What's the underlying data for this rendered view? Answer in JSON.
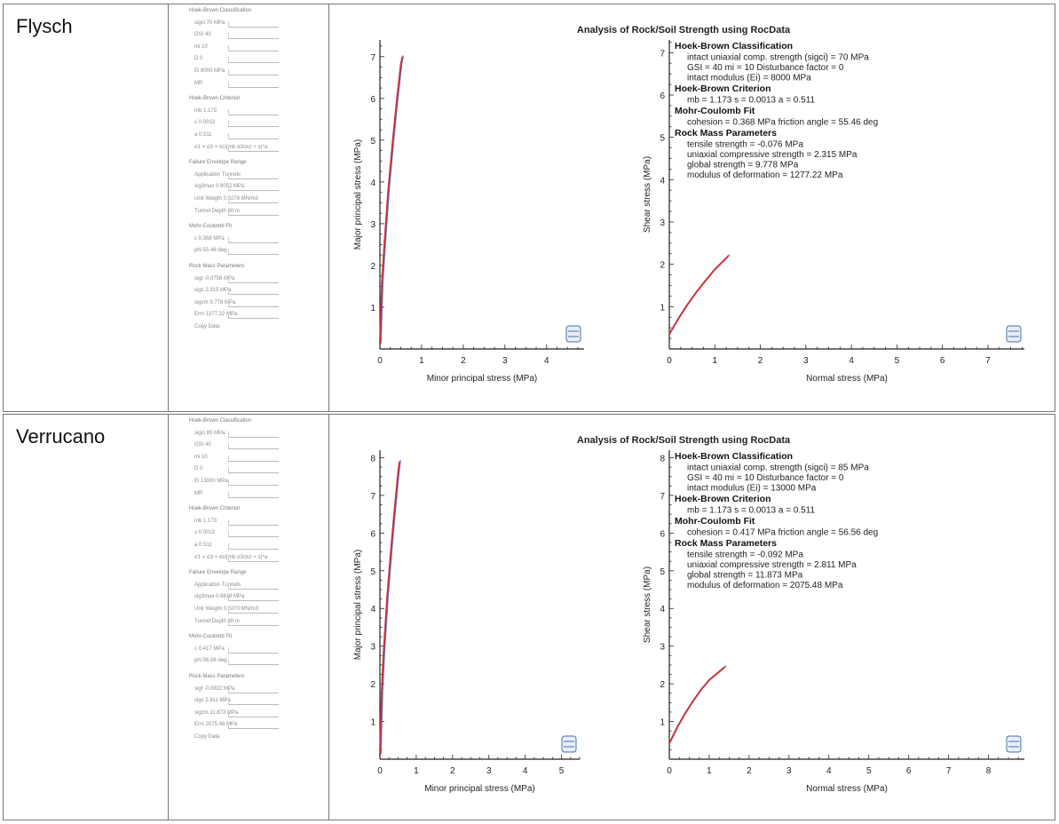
{
  "rows": [
    {
      "name": "Flysch",
      "panel_lines": [
        {
          "t": "Hoek-Brown Classification",
          "sec": true
        },
        {
          "t": "sigci  70   MPa"
        },
        {
          "t": "GSI  40"
        },
        {
          "t": "mi  10"
        },
        {
          "t": "D  0"
        },
        {
          "t": "Ei  8000   MPa"
        },
        {
          "t": "MR  "
        },
        {
          "t": "Hoek-Brown Criterion",
          "sec": true
        },
        {
          "t": "mb  1.173"
        },
        {
          "t": "s  0.0013"
        },
        {
          "t": "a  0.511"
        },
        {
          "t": "σ1 = σ3 + σci(mb σ3/σci + s)^a"
        },
        {
          "t": "Failure Envelope Range",
          "sec": true
        },
        {
          "t": "Application  Tunnels"
        },
        {
          "t": "sig3max  0.8052   MPa"
        },
        {
          "t": "Unit Weight  0.0278  MN/m3"
        },
        {
          "t": "Tunnel Depth  30   m"
        },
        {
          "t": "Mohr-Coulomb Fit",
          "sec": true
        },
        {
          "t": "c  0.368   MPa"
        },
        {
          "t": "phi  55.46   deg"
        },
        {
          "t": "Rock Mass Parameters",
          "sec": true
        },
        {
          "t": "sigt  -0.0758   MPa"
        },
        {
          "t": "sigc  2.315   MPa"
        },
        {
          "t": "sigcm  9.778   MPa"
        },
        {
          "t": "Erm  1277.22   MPa"
        },
        {
          "t": "Copy Data"
        }
      ],
      "title": "Analysis of Rock/Soil Strength using RocData",
      "principal": {
        "xlabel": "Minor principal stress (MPa)",
        "ylabel": "Major principal stress (MPa)",
        "xticks": [
          "0",
          "1",
          "2",
          "3",
          "4"
        ],
        "yticks": [
          "1",
          "2",
          "3",
          "4",
          "5",
          "6",
          "7"
        ],
        "xlim": [
          0,
          4.9
        ],
        "ylim": [
          0,
          7.4
        ],
        "curve_x": [
          0,
          0.05,
          0.1,
          0.2,
          0.3,
          0.4,
          0.5,
          0.54
        ],
        "curve_y": [
          0.1,
          1.6,
          2.4,
          3.8,
          4.9,
          5.9,
          6.8,
          7.0
        ]
      },
      "shear": {
        "xlabel": "Normal stress (MPa)",
        "ylabel": "Shear stress (MPa)",
        "xticks": [
          "0",
          "1",
          "2",
          "3",
          "4",
          "5",
          "6",
          "7"
        ],
        "yticks": [
          "1",
          "2",
          "3",
          "4",
          "5",
          "6",
          "7"
        ],
        "xlim": [
          0,
          7.8
        ],
        "ylim": [
          0,
          7.3
        ],
        "curve_x": [
          0,
          0.2,
          0.4,
          0.6,
          0.8,
          1.0,
          1.3
        ],
        "curve_y": [
          0.35,
          0.72,
          1.05,
          1.35,
          1.62,
          1.88,
          2.2
        ]
      },
      "summary": [
        {
          "h": "Hoek-Brown Classification",
          "lines": [
            "intact uniaxial comp. strength (sigci) = 70 MPa",
            "GSI = 40    mi = 10    Disturbance factor = 0",
            "intact modulus (Ei) = 8000 MPa"
          ]
        },
        {
          "h": "Hoek-Brown Criterion",
          "lines": [
            "mb = 1.173    s = 0.0013    a = 0.511"
          ]
        },
        {
          "h": "Mohr-Coulomb Fit",
          "lines": [
            "cohesion = 0.368 MPa    friction angle = 55.46 deg"
          ]
        },
        {
          "h": "Rock Mass Parameters",
          "lines": [
            "tensile strength = -0.076 MPa",
            "uniaxial compressive strength = 2.315 MPa",
            "global strength = 9.778 MPa",
            "modulus of deformation = 1277.22 MPa"
          ]
        }
      ]
    },
    {
      "name": "Verrucano",
      "panel_lines": [
        {
          "t": "Hoek-Brown Classification",
          "sec": true
        },
        {
          "t": "sigci  85   MPa"
        },
        {
          "t": "GSI  40"
        },
        {
          "t": "mi  10"
        },
        {
          "t": "D  0"
        },
        {
          "t": "Ei  13000   MPa"
        },
        {
          "t": "MR  "
        },
        {
          "t": "Hoek-Brown Criterion",
          "sec": true
        },
        {
          "t": "mb  1.173"
        },
        {
          "t": "s  0.0013"
        },
        {
          "t": "a  0.511"
        },
        {
          "t": "σ1 = σ3 + σci(mb σ3/σci + s)^a"
        },
        {
          "t": "Failure Envelope Range",
          "sec": true
        },
        {
          "t": "Application  Tunnels"
        },
        {
          "t": "sig3max  0.8818   MPa"
        },
        {
          "t": "Unit Weight  0.0270  MN/m3"
        },
        {
          "t": "Tunnel Depth  30   m"
        },
        {
          "t": "Mohr-Coulomb Fit",
          "sec": true
        },
        {
          "t": "c  0.417   MPa"
        },
        {
          "t": "phi  56.56   deg"
        },
        {
          "t": "Rock Mass Parameters",
          "sec": true
        },
        {
          "t": "sigt  -0.0922   MPa"
        },
        {
          "t": "sigc  2.811   MPa"
        },
        {
          "t": "sigcm  11.873   MPa"
        },
        {
          "t": "Erm  2075.48   MPa"
        },
        {
          "t": "Copy Data"
        }
      ],
      "title": "Analysis of Rock/Soil Strength using RocData",
      "principal": {
        "xlabel": "Minor principal stress (MPa)",
        "ylabel": "Major principal stress (MPa)",
        "xticks": [
          "0",
          "1",
          "2",
          "3",
          "4",
          "5"
        ],
        "yticks": [
          "1",
          "2",
          "3",
          "4",
          "5",
          "6",
          "7",
          "8"
        ],
        "xlim": [
          0,
          5.5
        ],
        "ylim": [
          0,
          8.2
        ],
        "curve_x": [
          0,
          0.05,
          0.1,
          0.2,
          0.3,
          0.4,
          0.5,
          0.54
        ],
        "curve_y": [
          0.1,
          1.8,
          2.8,
          4.3,
          5.5,
          6.6,
          7.6,
          7.9
        ]
      },
      "shear": {
        "xlabel": "Normal stress (MPa)",
        "ylabel": "Shear stress (MPa)",
        "xticks": [
          "0",
          "1",
          "2",
          "3",
          "4",
          "5",
          "6",
          "7",
          "8"
        ],
        "yticks": [
          "1",
          "2",
          "3",
          "4",
          "5",
          "6",
          "7",
          "8"
        ],
        "xlim": [
          0,
          8.9
        ],
        "ylim": [
          0,
          8.2
        ],
        "curve_x": [
          0,
          0.2,
          0.4,
          0.6,
          0.8,
          1.0,
          1.4
        ],
        "curve_y": [
          0.42,
          0.85,
          1.22,
          1.55,
          1.85,
          2.1,
          2.45
        ]
      },
      "summary": [
        {
          "h": "Hoek-Brown Classification",
          "lines": [
            "intact uniaxial comp. strength (sigci) = 85 MPa",
            "GSI = 40    mi = 10    Disturbance factor = 0",
            "intact modulus (Ei) = 13000 MPa"
          ]
        },
        {
          "h": "Hoek-Brown Criterion",
          "lines": [
            "mb = 1.173    s = 0.0013    a = 0.511"
          ]
        },
        {
          "h": "Mohr-Coulomb Fit",
          "lines": [
            "cohesion = 0.417 MPa    friction angle = 56.56 deg"
          ]
        },
        {
          "h": "Rock Mass Parameters",
          "lines": [
            "tensile strength = -0.092 MPa",
            "uniaxial compressive strength = 2.811 MPa",
            "global strength = 11.873 MPa",
            "modulus of deformation = 2075.48 MPa"
          ]
        }
      ]
    }
  ],
  "colors": {
    "red": "#c8343a",
    "blue": "#4a7fd6",
    "axis": "#222222",
    "text": "#222222",
    "heading": "#111111"
  }
}
